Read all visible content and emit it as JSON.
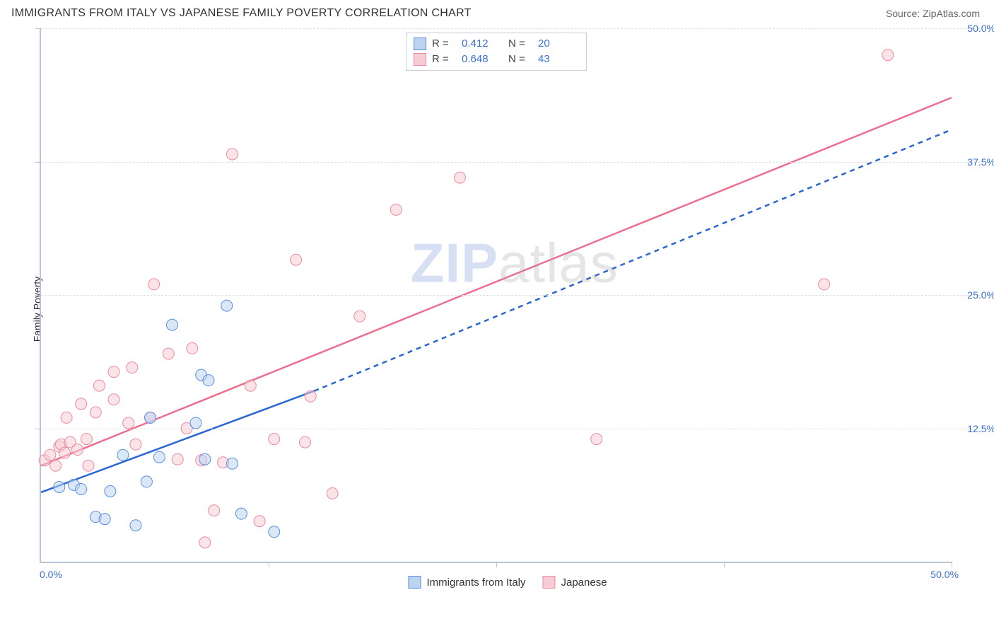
{
  "header": {
    "title": "IMMIGRANTS FROM ITALY VS JAPANESE FAMILY POVERTY CORRELATION CHART",
    "source": "Source: ZipAtlas.com"
  },
  "ylabel": "Family Poverty",
  "watermark": {
    "part1": "ZIP",
    "part2": "atlas"
  },
  "axes": {
    "xmin": 0,
    "xmax": 50,
    "ymin": 0,
    "ymax": 50,
    "x_tick_labels": {
      "min": "0.0%",
      "max": "50.0%"
    },
    "y_ticks": [
      {
        "v": 12.5,
        "label": "12.5%"
      },
      {
        "v": 25.0,
        "label": "25.0%"
      },
      {
        "v": 37.5,
        "label": "37.5%"
      },
      {
        "v": 50.0,
        "label": "50.0%"
      }
    ],
    "x_major_ticks": [
      12.5,
      25.0,
      37.5,
      50.0
    ],
    "grid_color": "#dcdfe4",
    "axis_color": "#b9c3d6",
    "tick_label_color": "#3b6fd6",
    "tick_label_fontsize": 14
  },
  "colors": {
    "blue_fill": "#bcd3f0",
    "blue_stroke": "#5a8fdd",
    "pink_fill": "#f6cdd6",
    "pink_stroke": "#ea8aa3",
    "trend_blue": "#2a66d1",
    "trend_pink": "#ee6e8f"
  },
  "marker": {
    "radius": 8,
    "stroke_width": 1,
    "fill_opacity": 0.55
  },
  "legend_top": {
    "items": [
      {
        "series": "blue",
        "R_label": "R =",
        "R": "0.412",
        "N_label": "N =",
        "N": "20"
      },
      {
        "series": "pink",
        "R_label": "R =",
        "R": "0.648",
        "N_label": "N =",
        "N": "43"
      }
    ]
  },
  "legend_bottom": {
    "items": [
      {
        "series": "blue",
        "label": "Immigrants from Italy"
      },
      {
        "series": "pink",
        "label": "Japanese"
      }
    ]
  },
  "series": {
    "blue": {
      "points": [
        [
          1.0,
          7.0
        ],
        [
          1.8,
          7.2
        ],
        [
          2.2,
          6.8
        ],
        [
          3.0,
          4.2
        ],
        [
          3.5,
          4.0
        ],
        [
          5.2,
          3.4
        ],
        [
          3.8,
          6.6
        ],
        [
          5.8,
          7.5
        ],
        [
          6.5,
          9.8
        ],
        [
          7.2,
          22.2
        ],
        [
          8.8,
          17.5
        ],
        [
          9.0,
          9.6
        ],
        [
          9.2,
          17.0
        ],
        [
          10.2,
          24.0
        ],
        [
          10.5,
          9.2
        ],
        [
          11.0,
          4.5
        ],
        [
          12.8,
          2.8
        ],
        [
          6.0,
          13.5
        ],
        [
          4.5,
          10.0
        ],
        [
          8.5,
          13.0
        ]
      ],
      "trend": {
        "x1": 0.0,
        "y1": 6.5,
        "x2": 15.0,
        "y2": 16.0,
        "dash": false
      },
      "trend_ext": {
        "x1": 15.0,
        "y1": 16.0,
        "x2": 50.0,
        "y2": 40.5,
        "dash": true
      }
    },
    "pink": {
      "points": [
        [
          0.2,
          9.5
        ],
        [
          0.5,
          10.0
        ],
        [
          0.8,
          9.0
        ],
        [
          1.0,
          10.8
        ],
        [
          1.1,
          11.0
        ],
        [
          1.3,
          10.2
        ],
        [
          1.4,
          13.5
        ],
        [
          1.6,
          11.2
        ],
        [
          2.0,
          10.5
        ],
        [
          2.2,
          14.8
        ],
        [
          2.5,
          11.5
        ],
        [
          2.6,
          9.0
        ],
        [
          3.0,
          14.0
        ],
        [
          3.2,
          16.5
        ],
        [
          4.0,
          15.2
        ],
        [
          4.0,
          17.8
        ],
        [
          4.8,
          13.0
        ],
        [
          5.0,
          18.2
        ],
        [
          5.2,
          11.0
        ],
        [
          6.0,
          13.5
        ],
        [
          6.2,
          26.0
        ],
        [
          7.0,
          19.5
        ],
        [
          7.5,
          9.6
        ],
        [
          8.0,
          12.5
        ],
        [
          8.3,
          20.0
        ],
        [
          8.8,
          9.5
        ],
        [
          9.0,
          1.8
        ],
        [
          9.5,
          4.8
        ],
        [
          10.0,
          9.3
        ],
        [
          10.5,
          38.2
        ],
        [
          11.5,
          16.5
        ],
        [
          12.0,
          3.8
        ],
        [
          12.8,
          11.5
        ],
        [
          14.0,
          28.3
        ],
        [
          14.5,
          11.2
        ],
        [
          14.8,
          15.5
        ],
        [
          16.0,
          6.4
        ],
        [
          17.5,
          23.0
        ],
        [
          19.5,
          33.0
        ],
        [
          23.0,
          36.0
        ],
        [
          30.5,
          11.5
        ],
        [
          43.0,
          26.0
        ],
        [
          46.5,
          47.5
        ]
      ],
      "trend": {
        "x1": 0.0,
        "y1": 9.0,
        "x2": 50.0,
        "y2": 43.5,
        "dash": false
      }
    }
  }
}
